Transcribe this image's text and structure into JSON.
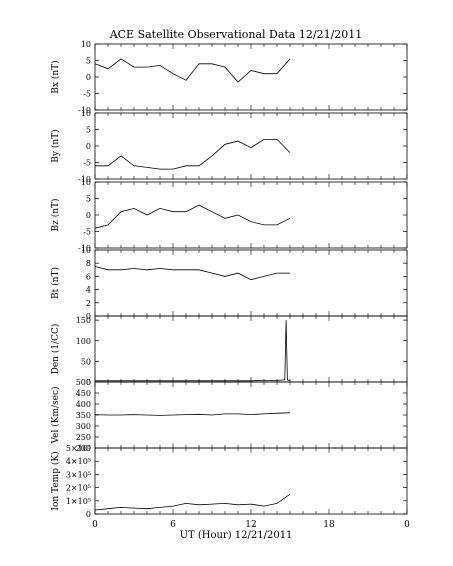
{
  "title": "ACE Satellite Observational Data   12/21/2011",
  "xlabel": "UT (Hour)   12/21/2011",
  "x_ticks": [
    "0",
    "6",
    "12",
    "18",
    "0"
  ],
  "colors": {
    "line": "#000000",
    "frame": "#000000",
    "background": "#ffffff"
  },
  "chart_data": [
    {
      "type": "line",
      "ylabel": "Bx (nT)",
      "ylim": [
        -10,
        10
      ],
      "ytick_labels": [
        "10",
        "5",
        "0",
        "-5",
        "-10"
      ],
      "ytick_values": [
        10,
        5,
        0,
        -5,
        -10
      ],
      "x_range": [
        0,
        24
      ],
      "x_hours": [
        0,
        1,
        2,
        3,
        4,
        5,
        6,
        7,
        8,
        9,
        10,
        11,
        12,
        13,
        14,
        15
      ],
      "y": [
        4,
        2.5,
        5.5,
        3,
        3,
        3.5,
        1,
        -1,
        4,
        4,
        3,
        -1.5,
        2,
        1,
        1,
        5.5
      ]
    },
    {
      "type": "line",
      "ylabel": "By (nT)",
      "ylim": [
        -10,
        10
      ],
      "ytick_labels": [
        "10",
        "5",
        "0",
        "-5",
        "-10"
      ],
      "ytick_values": [
        10,
        5,
        0,
        -5,
        -10
      ],
      "x_range": [
        0,
        24
      ],
      "x_hours": [
        0,
        1,
        2,
        3,
        4,
        5,
        6,
        7,
        8,
        9,
        10,
        11,
        12,
        13,
        14,
        15
      ],
      "y": [
        -6,
        -6,
        -3,
        -6,
        -6.5,
        -7,
        -7,
        -6,
        -6,
        -3,
        0.5,
        1.5,
        -0.5,
        2,
        2,
        -2
      ]
    },
    {
      "type": "line",
      "ylabel": "Bz (nT)",
      "ylim": [
        -10,
        10
      ],
      "ytick_labels": [
        "10",
        "5",
        "0",
        "-5",
        "-10"
      ],
      "ytick_values": [
        10,
        5,
        0,
        -5,
        -10
      ],
      "x_range": [
        0,
        24
      ],
      "x_hours": [
        0,
        1,
        2,
        3,
        4,
        5,
        6,
        7,
        8,
        9,
        10,
        11,
        12,
        13,
        14,
        15
      ],
      "y": [
        -4,
        -3,
        1,
        2,
        0,
        2,
        1,
        1,
        3,
        1,
        -1,
        0,
        -2,
        -3,
        -3,
        -1
      ]
    },
    {
      "type": "line",
      "ylabel": "Bt (nT)",
      "ylim": [
        0,
        10
      ],
      "ytick_labels": [
        "10",
        "8",
        "6",
        "4",
        "2",
        "0"
      ],
      "ytick_values": [
        10,
        8,
        6,
        4,
        2,
        0
      ],
      "x_range": [
        0,
        24
      ],
      "x_hours": [
        0,
        1,
        2,
        3,
        4,
        5,
        6,
        7,
        8,
        9,
        10,
        11,
        12,
        13,
        14,
        15
      ],
      "y": [
        7.5,
        7,
        7,
        7.2,
        7,
        7.2,
        7,
        7,
        7,
        6.5,
        6,
        6.5,
        5.5,
        6,
        6.5,
        6.5
      ]
    },
    {
      "type": "line",
      "ylabel": "Den (1/CC)",
      "ylim": [
        0,
        160
      ],
      "ytick_labels": [
        "150",
        "100",
        "50",
        "0"
      ],
      "ytick_values": [
        150,
        100,
        50,
        0
      ],
      "x_range": [
        0,
        24
      ],
      "x_hours": [
        0,
        1,
        2,
        3,
        4,
        5,
        6,
        7,
        8,
        9,
        10,
        11,
        12,
        13,
        14,
        14.6,
        14.7,
        14.8,
        15
      ],
      "y": [
        3,
        3,
        3,
        3,
        3,
        3,
        3,
        3,
        3,
        3,
        3,
        3,
        3,
        4,
        4,
        5,
        150,
        5,
        4
      ]
    },
    {
      "type": "line",
      "ylabel": "Vel (Km/sec)",
      "ylim": [
        200,
        500
      ],
      "ytick_labels": [
        "500",
        "450",
        "400",
        "350",
        "300",
        "250",
        "200"
      ],
      "ytick_values": [
        500,
        450,
        400,
        350,
        300,
        250,
        200
      ],
      "x_range": [
        0,
        24
      ],
      "x_hours": [
        0,
        1,
        2,
        3,
        4,
        5,
        6,
        7,
        8,
        9,
        10,
        11,
        12,
        13,
        14,
        15
      ],
      "y": [
        352,
        350,
        350,
        352,
        350,
        348,
        350,
        352,
        353,
        350,
        355,
        355,
        352,
        355,
        358,
        360
      ]
    },
    {
      "type": "line",
      "ylabel": "Ion Temp (K)",
      "ylim": [
        0,
        500000
      ],
      "ytick_labels": [
        "5×10⁵",
        "4×10⁵",
        "3×10⁵",
        "2×10⁵",
        "1×10⁵",
        "0"
      ],
      "ytick_values": [
        500000,
        400000,
        300000,
        200000,
        100000,
        0
      ],
      "x_range": [
        0,
        24
      ],
      "x_hours": [
        0,
        1,
        2,
        3,
        4,
        5,
        6,
        7,
        8,
        9,
        10,
        11,
        12,
        13,
        14,
        15
      ],
      "y": [
        30000,
        40000,
        50000,
        45000,
        40000,
        50000,
        60000,
        80000,
        70000,
        75000,
        80000,
        70000,
        75000,
        60000,
        80000,
        150000
      ]
    }
  ]
}
